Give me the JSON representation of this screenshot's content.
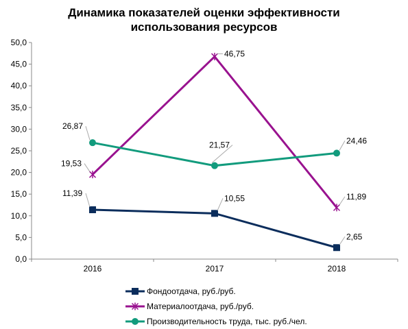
{
  "chart_data": {
    "type": "line",
    "title_lines": [
      "Динамика показателей оценки эффективности",
      "использования ресурсов"
    ],
    "categories": [
      "2016",
      "2017",
      "2018"
    ],
    "ylim": [
      0,
      50
    ],
    "yticks": [
      "0,0",
      "5,0",
      "10,0",
      "15,0",
      "20,0",
      "25,0",
      "30,0",
      "35,0",
      "40,0",
      "45,0",
      "50,0"
    ],
    "grid": false,
    "legend_position": "bottom",
    "series": [
      {
        "name": "Фондоотдача, руб./руб.",
        "values": [
          11.39,
          10.55,
          2.65
        ],
        "labels": [
          "11,39",
          "10,55",
          "2,65"
        ],
        "color": "#0b2d5c",
        "marker": "square"
      },
      {
        "name": "Материалоотдача, руб./руб.",
        "values": [
          19.53,
          46.75,
          11.89
        ],
        "labels": [
          "19,53",
          "46,75",
          "11,89"
        ],
        "color": "#99128f",
        "marker": "star"
      },
      {
        "name": "Производительность труда, тыс. руб./чел.",
        "values": [
          26.87,
          21.57,
          24.46
        ],
        "labels": [
          "26,87",
          "21,57",
          "24,46"
        ],
        "color": "#129b7d",
        "marker": "circle"
      }
    ]
  }
}
